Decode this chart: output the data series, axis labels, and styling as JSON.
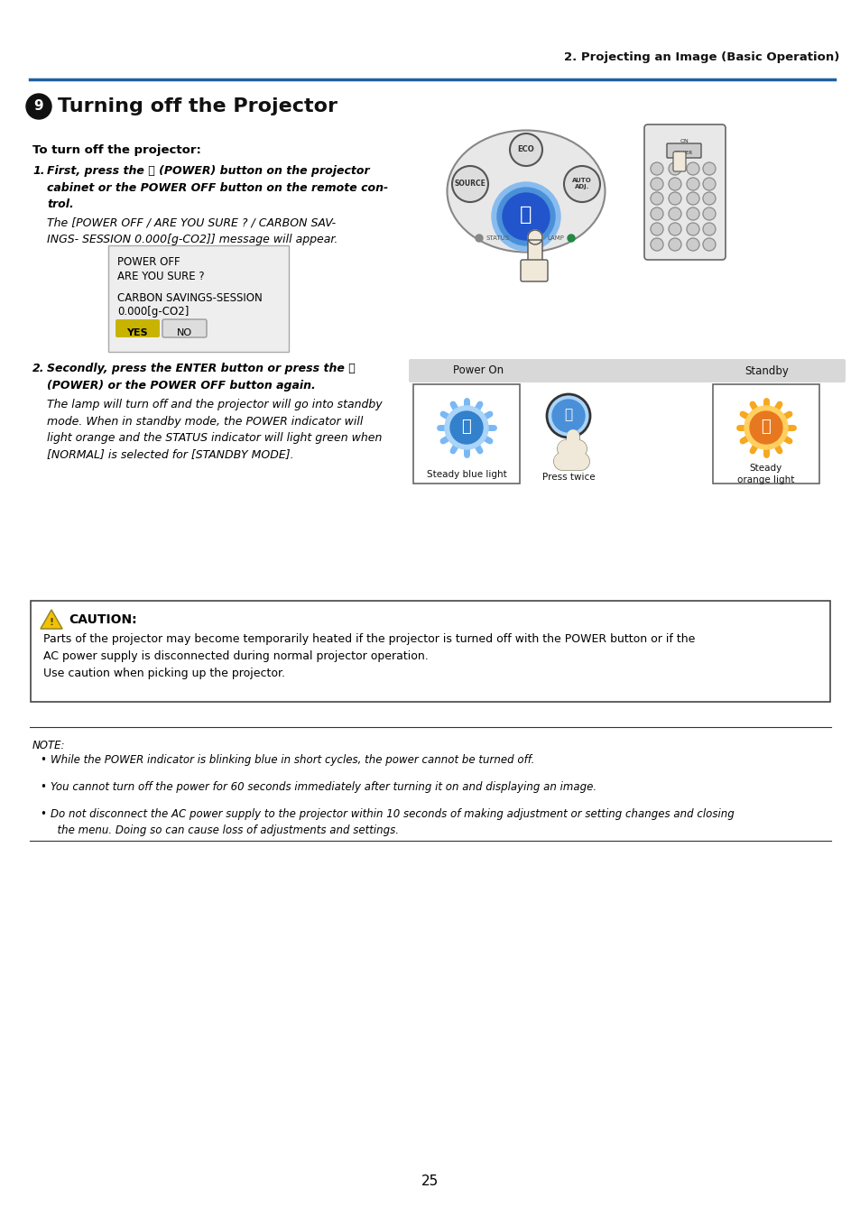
{
  "page_header_right": "2. Projecting an Image (Basic Operation)",
  "step1_heading": "To turn off the projector:",
  "step1_bold": "First, press the ⏻ (POWER) button on the projector\ncabinet or the POWER OFF button on the remote con-\ntrol.",
  "step1_normal": "The [POWER OFF / ARE YOU SURE ? / CARBON SAV-\nINGS- SESSION 0.000[g-CO2]] message will appear.",
  "step2_bold": "Secondly, press the ENTER button or press the ⏻\n(POWER) or the POWER OFF button again.",
  "step2_normal": "The lamp will turn off and the projector will go into standby\nmode. When in standby mode, the POWER indicator will\nlight orange and the STATUS indicator will light green when\n[NORMAL] is selected for [STANDBY MODE].",
  "dialog_line1": "POWER OFF",
  "dialog_line2": "ARE YOU SURE ?",
  "dialog_line3": "CARBON SAVINGS-SESSION",
  "dialog_line4": "0.000[g-CO2]",
  "dialog_yes": "YES",
  "dialog_no": "NO",
  "power_on_label": "Power On",
  "standby_label": "Standby",
  "steady_blue": "Steady blue light",
  "press_twice": "Press twice",
  "steady_orange": "Steady\norange light",
  "caution_title": "CAUTION:",
  "caution_text": "Parts of the projector may become temporarily heated if the projector is turned off with the POWER button or if the\nAC power supply is disconnected during normal projector operation.\nUse caution when picking up the projector.",
  "note_label": "NOTE:",
  "note_bullets": [
    "While the POWER indicator is blinking blue in short cycles, the power cannot be turned off.",
    "You cannot turn off the power for 60 seconds immediately after turning it on and displaying an image.",
    "Do not disconnect the AC power supply to the projector within 10 seconds of making adjustment or setting changes and closing\n  the menu. Doing so can cause loss of adjustments and settings."
  ],
  "page_number": "25",
  "header_line_color": "#2060a0",
  "bg_color": "#ffffff",
  "text_color": "#000000",
  "title_color": "#1a1a1a",
  "dialog_yes_bg": "#c8b400",
  "blue_color": "#4a90d9",
  "blue_light": "#7ab8f5",
  "blue_dark": "#2255aa",
  "orange_color": "#e87820",
  "orange_light": "#ffcc44",
  "caution_box_border": "#333333"
}
